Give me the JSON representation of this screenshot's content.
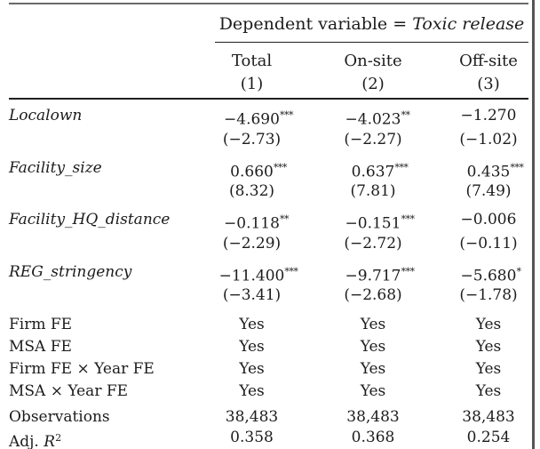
{
  "table": {
    "dep_var": {
      "prefix": "Dependent variable = ",
      "value": "Toxic release"
    },
    "columns": [
      {
        "label": "Total",
        "number": "(1)"
      },
      {
        "label": "On-site",
        "number": "(2)"
      },
      {
        "label": "Off-site",
        "number": "(3)"
      }
    ],
    "variables": [
      {
        "label": "Localown",
        "cells": [
          {
            "est": "−4.690",
            "stars": "***",
            "t": "(−2.73)"
          },
          {
            "est": "−4.023",
            "stars": "**",
            "t": "(−2.27)"
          },
          {
            "est": "−1.270",
            "stars": "",
            "t": "(−1.02)"
          }
        ]
      },
      {
        "label": "Facility_size",
        "cells": [
          {
            "est": "0.660",
            "stars": "***",
            "t": "(8.32)"
          },
          {
            "est": "0.637",
            "stars": "***",
            "t": "(7.81)"
          },
          {
            "est": "0.435",
            "stars": "***",
            "t": "(7.49)"
          }
        ]
      },
      {
        "label": "Facility_HQ_distance",
        "cells": [
          {
            "est": "−0.118",
            "stars": "**",
            "t": "(−2.29)"
          },
          {
            "est": "−0.151",
            "stars": "***",
            "t": "(−2.72)"
          },
          {
            "est": "−0.006",
            "stars": "",
            "t": "(−0.11)"
          }
        ]
      },
      {
        "label": "REG_stringency",
        "cells": [
          {
            "est": "−11.400",
            "stars": "***",
            "t": "(−3.41)"
          },
          {
            "est": "−9.717",
            "stars": "***",
            "t": "(−2.68)"
          },
          {
            "est": "−5.680",
            "stars": "*",
            "t": "(−1.78)"
          }
        ]
      }
    ],
    "fixed_effects": [
      {
        "label": "Firm FE",
        "values": [
          "Yes",
          "Yes",
          "Yes"
        ]
      },
      {
        "label": "MSA FE",
        "values": [
          "Yes",
          "Yes",
          "Yes"
        ]
      },
      {
        "label": "Firm FE × Year FE",
        "values": [
          "Yes",
          "Yes",
          "Yes"
        ]
      },
      {
        "label": "MSA × Year FE",
        "values": [
          "Yes",
          "Yes",
          "Yes"
        ]
      }
    ],
    "stats": [
      {
        "label": "Observations",
        "values": [
          "38,483",
          "38,483",
          "38,483"
        ]
      },
      {
        "label_prefix": "Adj. ",
        "label_symbol": "R",
        "label_sup": "2",
        "values": [
          "0.358",
          "0.368",
          "0.254"
        ]
      }
    ]
  },
  "colors": {
    "text": "#1c1c1c",
    "rule_dark": "#1f1f1f",
    "rule_top_gray": "#6a6a6a",
    "page_edge": "#555555"
  }
}
